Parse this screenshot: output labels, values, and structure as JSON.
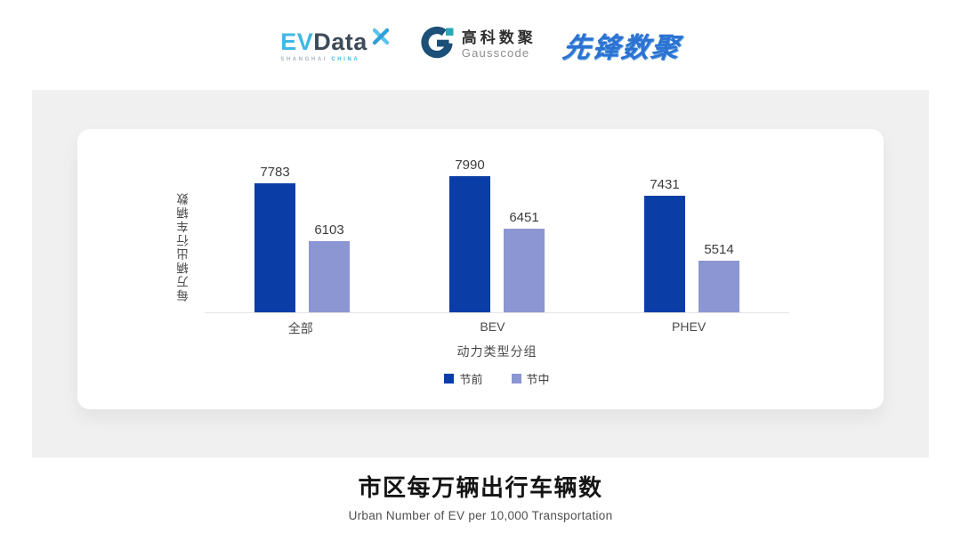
{
  "header": {
    "logos": {
      "evdata": {
        "ev": "EV",
        "data": "Data",
        "sub_left": "SHANGHAI",
        "sub_right": "CHINA"
      },
      "gausscode": {
        "cn": "高科数聚",
        "en": "Gausscode"
      },
      "xianfeng": {
        "text": "先锋数聚"
      }
    }
  },
  "chart_data": {
    "type": "bar",
    "title": "市区每万辆出行车辆数",
    "subtitle": "Urban Number of EV per 10,000 Transportation",
    "xlabel": "动力类型分组",
    "ylabel": "每万辆出行车辆数",
    "categories": [
      "全部",
      "BEV",
      "PHEV"
    ],
    "series": [
      {
        "name": "节前",
        "color": "#0B3DA7",
        "values": [
          7783,
          7990,
          7431
        ]
      },
      {
        "name": "节中",
        "color": "#8B96D2",
        "values": [
          6103,
          6451,
          5514
        ]
      }
    ],
    "ylim": [
      4000,
      8500
    ],
    "grid": false,
    "legend_position": "bottom",
    "value_labels": true
  },
  "colors": {
    "gray_background": "#F0F0F1",
    "axis_line": "#E3E3E3",
    "evdata_cyan": "#3FB8E8",
    "evdata_dark": "#3D4B59",
    "gausscode_blue": "#1C5078",
    "gausscode_teal": "#29A8B8",
    "xianfeng_blue": "#2B72D2"
  }
}
